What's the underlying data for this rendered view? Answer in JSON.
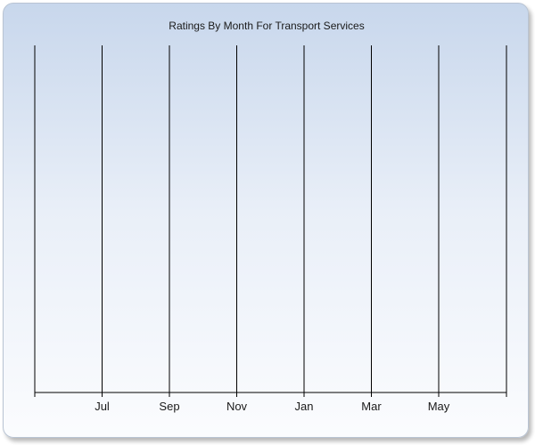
{
  "chart_data": {
    "type": "line",
    "title": "Ratings By Month For Transport Services",
    "xlabel": "",
    "ylabel": "",
    "categories": [
      "Jul",
      "Sep",
      "Nov",
      "Jan",
      "Mar",
      "May"
    ],
    "series": [],
    "grid": true,
    "legend": "none"
  }
}
